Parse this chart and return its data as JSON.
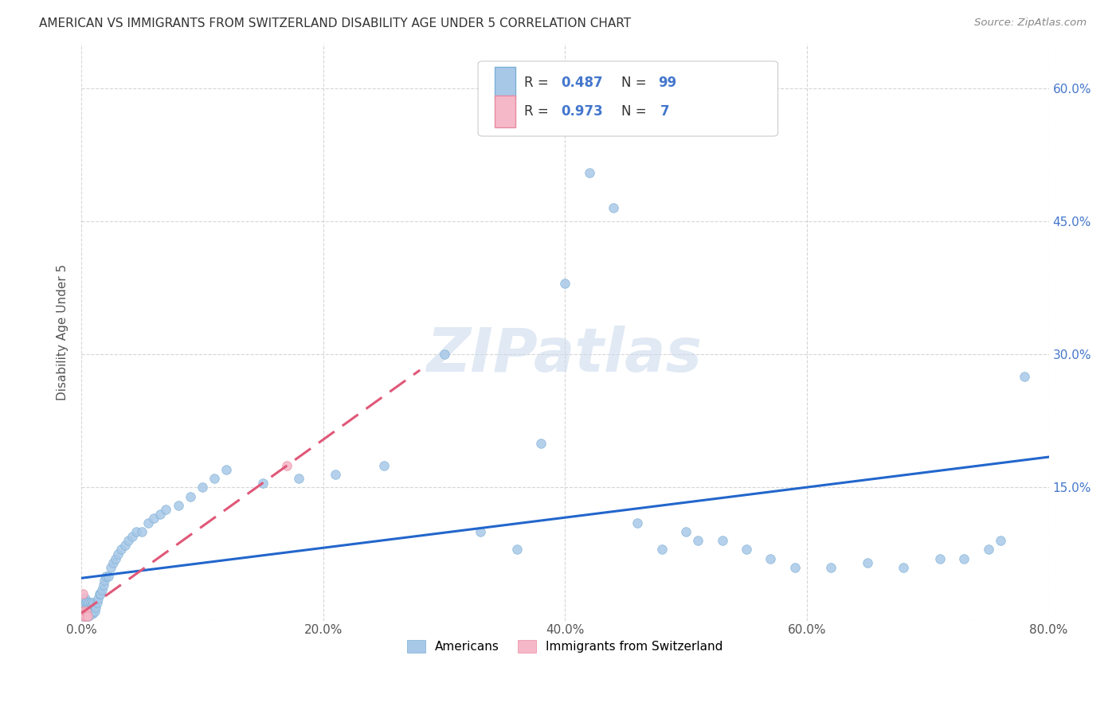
{
  "title": "AMERICAN VS IMMIGRANTS FROM SWITZERLAND DISABILITY AGE UNDER 5 CORRELATION CHART",
  "source": "Source: ZipAtlas.com",
  "ylabel": "Disability Age Under 5",
  "xlim": [
    0,
    0.8
  ],
  "ylim": [
    0,
    0.65
  ],
  "xticks": [
    0.0,
    0.2,
    0.4,
    0.6,
    0.8
  ],
  "yticks": [
    0.0,
    0.15,
    0.3,
    0.45,
    0.6
  ],
  "right_ytick_labels": [
    "",
    "15.0%",
    "30.0%",
    "45.0%",
    "60.0%"
  ],
  "left_ytick_labels": [
    "",
    "",
    "",
    "",
    ""
  ],
  "xtick_labels": [
    "0.0%",
    "20.0%",
    "40.0%",
    "60.0%",
    "80.0%"
  ],
  "blue_color": "#a8c8e8",
  "blue_edge_color": "#7bafd4",
  "pink_color": "#f5b8c8",
  "pink_edge_color": "#e88aa0",
  "blue_line_color": "#2266cc",
  "pink_line_color": "#e05878",
  "americans_x": [
    0.001,
    0.001,
    0.001,
    0.001,
    0.001,
    0.001,
    0.001,
    0.001,
    0.002,
    0.002,
    0.002,
    0.002,
    0.002,
    0.002,
    0.003,
    0.003,
    0.003,
    0.003,
    0.003,
    0.004,
    0.004,
    0.004,
    0.004,
    0.005,
    0.005,
    0.005,
    0.006,
    0.006,
    0.006,
    0.007,
    0.007,
    0.008,
    0.008,
    0.009,
    0.009,
    0.01,
    0.01,
    0.011,
    0.012,
    0.013,
    0.014,
    0.015,
    0.016,
    0.017,
    0.018,
    0.019,
    0.02,
    0.022,
    0.024,
    0.026,
    0.028,
    0.03,
    0.033,
    0.036,
    0.039,
    0.042,
    0.045,
    0.05,
    0.055,
    0.06,
    0.065,
    0.07,
    0.08,
    0.09,
    0.1,
    0.11,
    0.12,
    0.15,
    0.18,
    0.21,
    0.25,
    0.3,
    0.33,
    0.36,
    0.38,
    0.4,
    0.42,
    0.44,
    0.46,
    0.48,
    0.5,
    0.51,
    0.53,
    0.55,
    0.57,
    0.59,
    0.62,
    0.65,
    0.68,
    0.71,
    0.73,
    0.75,
    0.76,
    0.78
  ],
  "americans_y": [
    0.005,
    0.008,
    0.01,
    0.012,
    0.015,
    0.018,
    0.02,
    0.025,
    0.005,
    0.008,
    0.01,
    0.015,
    0.02,
    0.025,
    0.005,
    0.008,
    0.012,
    0.018,
    0.025,
    0.005,
    0.008,
    0.012,
    0.02,
    0.005,
    0.01,
    0.018,
    0.005,
    0.01,
    0.02,
    0.008,
    0.015,
    0.008,
    0.02,
    0.008,
    0.018,
    0.01,
    0.02,
    0.01,
    0.015,
    0.02,
    0.025,
    0.03,
    0.03,
    0.035,
    0.04,
    0.045,
    0.05,
    0.05,
    0.06,
    0.065,
    0.07,
    0.075,
    0.08,
    0.085,
    0.09,
    0.095,
    0.1,
    0.1,
    0.11,
    0.115,
    0.12,
    0.125,
    0.13,
    0.14,
    0.15,
    0.16,
    0.17,
    0.155,
    0.16,
    0.165,
    0.175,
    0.3,
    0.1,
    0.08,
    0.2,
    0.38,
    0.505,
    0.465,
    0.11,
    0.08,
    0.1,
    0.09,
    0.09,
    0.08,
    0.07,
    0.06,
    0.06,
    0.065,
    0.06,
    0.07,
    0.07,
    0.08,
    0.09,
    0.275
  ],
  "swiss_x": [
    0.001,
    0.001,
    0.002,
    0.003,
    0.004,
    0.005,
    0.17
  ],
  "swiss_y": [
    0.01,
    0.03,
    0.005,
    0.005,
    0.01,
    0.005,
    0.175
  ]
}
